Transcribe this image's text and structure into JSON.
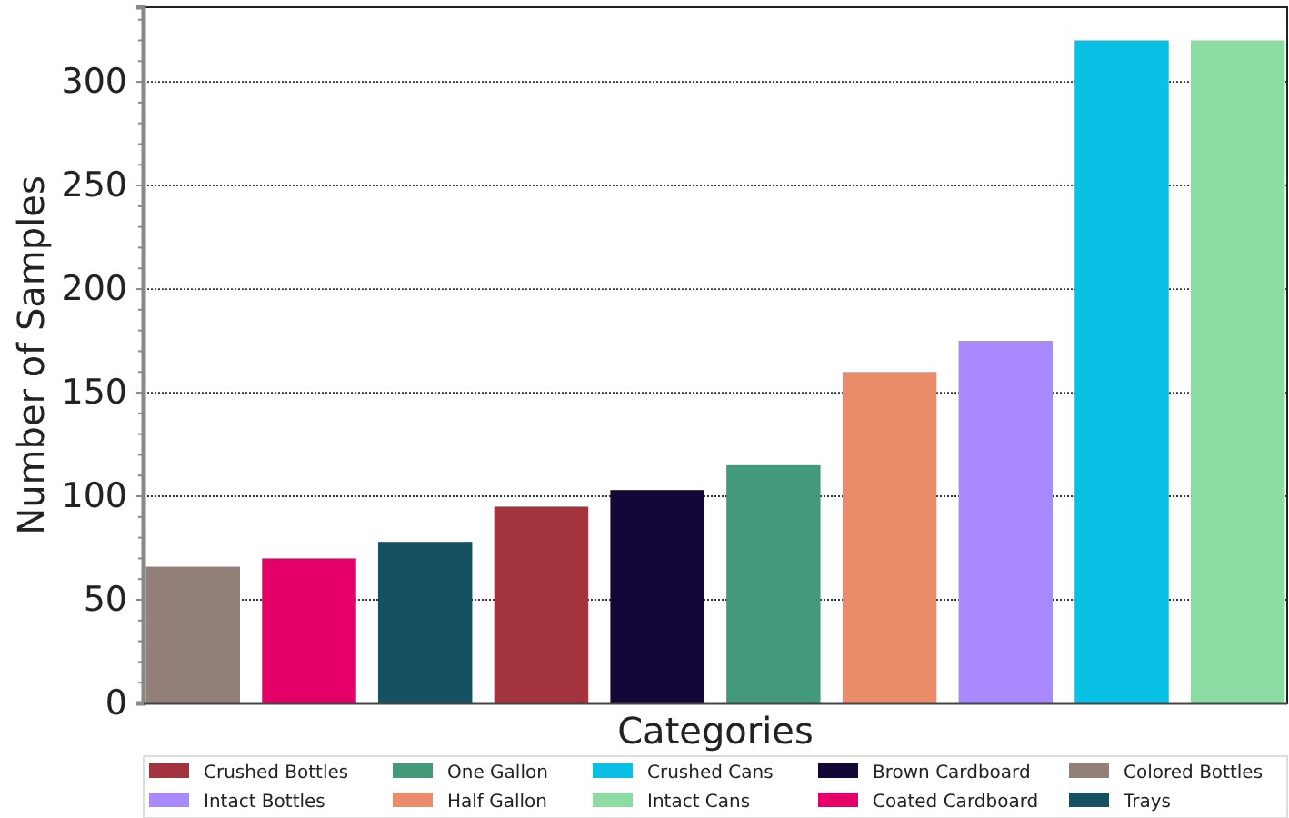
{
  "chart_data": {
    "type": "bar",
    "xlabel": "Categories",
    "ylabel": "Number of Samples",
    "categories": [
      null,
      null,
      null,
      null,
      null,
      null,
      null,
      null,
      null,
      null
    ],
    "series": [
      {
        "name": "Crushed Bottles",
        "color": "#a3333d",
        "values": [
          null,
          null,
          null,
          95,
          null,
          null,
          null,
          null,
          null,
          null
        ]
      },
      {
        "name": "Intact Bottles",
        "color": "#a88afe",
        "values": [
          null,
          null,
          null,
          null,
          null,
          null,
          null,
          175,
          null,
          null
        ]
      },
      {
        "name": "One Gallon",
        "color": "#439a7a",
        "values": [
          null,
          null,
          null,
          null,
          null,
          115,
          null,
          null,
          null,
          null
        ]
      },
      {
        "name": "Half Gallon",
        "color": "#ea8c69",
        "values": [
          null,
          null,
          null,
          null,
          null,
          null,
          160,
          null,
          null,
          null
        ]
      },
      {
        "name": "Crushed Cans",
        "color": "#08bfe4",
        "values": [
          null,
          null,
          null,
          null,
          null,
          null,
          null,
          null,
          320,
          null
        ]
      },
      {
        "name": "Intact Cans",
        "color": "#8ddca3",
        "values": [
          null,
          null,
          null,
          null,
          null,
          null,
          null,
          null,
          null,
          320
        ]
      },
      {
        "name": "Brown Cardboard",
        "color": "#130737",
        "values": [
          null,
          null,
          null,
          null,
          103,
          null,
          null,
          null,
          null,
          null
        ]
      },
      {
        "name": "Coated Cardboard",
        "color": "#e50068",
        "values": [
          null,
          70,
          null,
          null,
          null,
          null,
          null,
          null,
          null,
          null
        ]
      },
      {
        "name": "Colored Bottles",
        "color": "#927f78",
        "values": [
          66,
          null,
          null,
          null,
          null,
          null,
          null,
          null,
          null,
          null
        ]
      },
      {
        "name": "Trays",
        "color": "#155160",
        "values": [
          null,
          null,
          78,
          null,
          null,
          null,
          null,
          null,
          null,
          null
        ]
      }
    ],
    "ylim": [
      0,
      336
    ],
    "yticks": [
      0,
      {
        "value": 10,
        "label": null
      },
      {
        "value": 20,
        "label": null
      },
      {
        "value": 30,
        "label": null
      },
      {
        "value": 40,
        "label": null
      },
      50,
      {
        "value": 60,
        "label": null
      },
      {
        "value": 70,
        "label": null
      },
      {
        "value": 80,
        "label": null
      },
      {
        "value": 90,
        "label": null
      },
      100,
      {
        "value": 110,
        "label": null
      },
      {
        "value": 120,
        "label": null
      },
      {
        "value": 130,
        "label": null
      },
      {
        "value": 140,
        "label": null
      },
      150,
      {
        "value": 160,
        "label": null
      },
      {
        "value": 170,
        "label": null
      },
      {
        "value": 180,
        "label": null
      },
      {
        "value": 190,
        "label": null
      },
      200,
      {
        "value": 210,
        "label": null
      },
      {
        "value": 220,
        "label": null
      },
      {
        "value": 230,
        "label": null
      },
      {
        "value": 240,
        "label": null
      },
      250,
      {
        "value": 260,
        "label": null
      },
      {
        "value": 270,
        "label": null
      },
      {
        "value": 280,
        "label": null
      },
      {
        "value": 290,
        "label": null
      },
      300,
      {
        "value": 310,
        "label": null
      },
      {
        "value": 320,
        "label": null
      },
      {
        "value": 330,
        "label": null
      }
    ],
    "grid": "y",
    "legend": "bottom"
  }
}
